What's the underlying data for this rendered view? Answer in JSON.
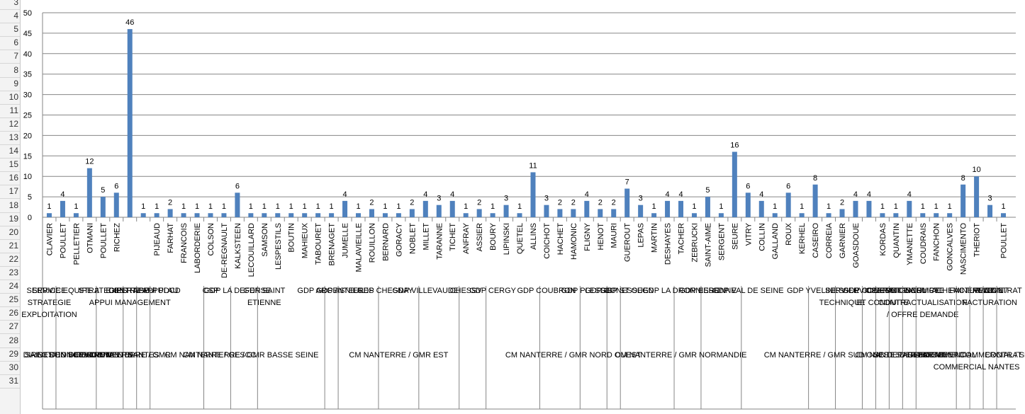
{
  "row_numbers": [
    "3",
    "4",
    "5",
    "6",
    "7",
    "8",
    "9",
    "10",
    "11",
    "12",
    "13",
    "14",
    "15",
    "16",
    "17",
    "18",
    "19",
    "20",
    "21",
    "22",
    "23",
    "24",
    "25",
    "26",
    "27",
    "28",
    "29",
    "30",
    "31"
  ],
  "chart_data": {
    "type": "bar",
    "ylim": [
      0,
      50
    ],
    "yticks": [
      0,
      5,
      10,
      15,
      20,
      25,
      30,
      35,
      40,
      45,
      50
    ],
    "bar_color": "#4f81bd",
    "categories": [
      "CLAVIER",
      "POULLET",
      "PELLETIER",
      "OTMANI",
      "POULLET",
      "RICHEZ",
      "",
      "",
      "PIJEAUD",
      "FARHAT",
      "FRANCOIS",
      "LABORDERIE",
      "COLSON",
      "DE-REGNAULT",
      "KALKSTEEN",
      "LECOUILLARD",
      "SAMSON",
      "LESPESTILS",
      "BOUTIN",
      "MAHIEUX",
      "TABOURET",
      "BRENAGET",
      "JUMELLE",
      "MALAVIEILLE",
      "ROUILLON",
      "BERNARD",
      "GORACY",
      "NOBLET",
      "MILLET",
      "TARANNE",
      "TICHET",
      "ANFRAY",
      "ASSIER",
      "BOURY",
      "LIPINSKI",
      "QUETEL",
      "ALLINS",
      "COICHOT",
      "HACHET",
      "HAMONIC",
      "FLIGNY",
      "HENOT",
      "MAURI",
      "GUEROUT",
      "LEPAS",
      "MARTIN",
      "DESHAYES",
      "TACHER",
      "ZEBRUCKI",
      "SAINT-AIME",
      "SERGENT",
      "SEURE",
      "VITRY",
      "COLLIN",
      "GALLAND",
      "ROUX",
      "KERHEL",
      "CASEIRO",
      "CORREIA",
      "GARNIER",
      "GOASDOUE",
      "",
      "KORDAS",
      "QUANTIN",
      "YMANETTE",
      "COUDRAIS",
      "FANCHON",
      "GONCALVES",
      "NASCIMENTO",
      "THERIOT",
      "",
      "POULLET"
    ],
    "values": [
      1,
      4,
      1,
      12,
      5,
      6,
      46,
      1,
      1,
      2,
      1,
      1,
      1,
      1,
      6,
      1,
      1,
      1,
      1,
      1,
      1,
      1,
      4,
      1,
      2,
      1,
      1,
      2,
      4,
      3,
      4,
      1,
      2,
      1,
      3,
      1,
      11,
      3,
      2,
      2,
      4,
      2,
      2,
      7,
      3,
      1,
      4,
      4,
      1,
      5,
      1,
      16,
      6,
      4,
      1,
      6,
      1,
      8,
      1,
      2,
      4,
      4,
      1,
      1,
      4,
      1,
      1,
      1,
      8,
      10,
      3,
      1
    ],
    "level2_labels": [
      {
        "text": "SERVICE STRATEGIE EXPLOITATION",
        "bar": 0
      },
      {
        "text": "SERVICE EQUIPE 2",
        "bar": 1
      },
      {
        "text": "STRATEGIES",
        "bar": 4
      },
      {
        "text": "EXPERTISE / APPUI MANAGEMENT",
        "bar": 6
      },
      {
        "text": "CENTRE APPUI AU",
        "bar": 7
      },
      {
        "text": "APPUI PDCD",
        "bar": 8
      },
      {
        "text": "CSP",
        "bar": 12
      },
      {
        "text": "GDP LA DEFENSE",
        "bar": 14
      },
      {
        "text": "GDP SAINT ETIENNE",
        "bar": 16
      },
      {
        "text": "GDP ARGENTEUIL",
        "bar": 21
      },
      {
        "text": "GDP ASNIERES",
        "bar": 22
      },
      {
        "text": "GDP CHESNAY",
        "bar": 25
      },
      {
        "text": "GDP VILLEVAUDE",
        "bar": 28
      },
      {
        "text": "CHESSY",
        "bar": 31
      },
      {
        "text": "GDP CERGY",
        "bar": 33
      },
      {
        "text": "GDP COUBRON",
        "bar": 37
      },
      {
        "text": "GDP PLESSIS",
        "bar": 40
      },
      {
        "text": "GDP GONESSE",
        "bar": 42
      },
      {
        "text": "GDP ST OUEN",
        "bar": 43
      },
      {
        "text": "GDP LA DRONNIERE",
        "bar": 47
      },
      {
        "text": "GDP ESSONNE",
        "bar": 49
      },
      {
        "text": "GDP VAL DE SEINE",
        "bar": 52
      },
      {
        "text": "GDP YVELINES",
        "bar": 57
      },
      {
        "text": "SERVICE TECHNIQUE",
        "bar": 59
      },
      {
        "text": "GDP COMPTE",
        "bar": 61
      },
      {
        "text": "SERVICE CONTRATS ET CONDUITE",
        "bar": 62
      },
      {
        "text": "OPERATIONNEL",
        "bar": 63
      },
      {
        "text": "SERVICE COMPTE",
        "bar": 64
      },
      {
        "text": "SERVICE CONTRACTUALISATION / OFFRE DEMANDE",
        "bar": 65
      },
      {
        "text": "ACHEMINEMENT",
        "bar": 68
      },
      {
        "text": "FACTURATION",
        "bar": 69
      },
      {
        "text": "RELEVE / FACTURATION",
        "bar": 70
      },
      {
        "text": "CONTRAT",
        "bar": 71
      }
    ],
    "level3_labels": [
      {
        "text": "SAINT DENIS",
        "bar": 0
      },
      {
        "text": "DIRECTION SERVICE",
        "bar": 1
      },
      {
        "text": "GESTION CONDUITE",
        "bar": 2
      },
      {
        "text": "DIRECTION",
        "bar": 3
      },
      {
        "text": "CENTRE VENTE",
        "bar": 4
      },
      {
        "text": "VILLERS",
        "bar": 5
      },
      {
        "text": "CM NANTERRE / GMR",
        "bar": 6
      },
      {
        "text": "NANTES",
        "bar": 7
      },
      {
        "text": "CM NANTERRE / GESCC",
        "bar": 12
      },
      {
        "text": "CM NANTERRE / GMR BASSE SEINE",
        "bar": 15
      },
      {
        "text": "CM NANTERRE / GMR EST",
        "bar": 26
      },
      {
        "text": "CM NANTERRE / GMR NORD OUEST",
        "bar": 39
      },
      {
        "text": "CM NANTERRE / GMR NORMANDIE",
        "bar": 47
      },
      {
        "text": "CM NANTERRE / GMR SUD OUEST",
        "bar": 58
      },
      {
        "text": "CM NANTES / GEMCC",
        "bar": 63
      },
      {
        "text": "SC DEPARTEMENT",
        "bar": 64
      },
      {
        "text": "DEPARTEMENT",
        "bar": 66
      },
      {
        "text": "COMMERCIAL",
        "bar": 67
      },
      {
        "text": "DEPARTEMENT COMMERCIAL / SERVICE COMMERCIAL NANTES",
        "bar": 69
      },
      {
        "text": "CONTRAT",
        "bar": 71
      }
    ]
  }
}
